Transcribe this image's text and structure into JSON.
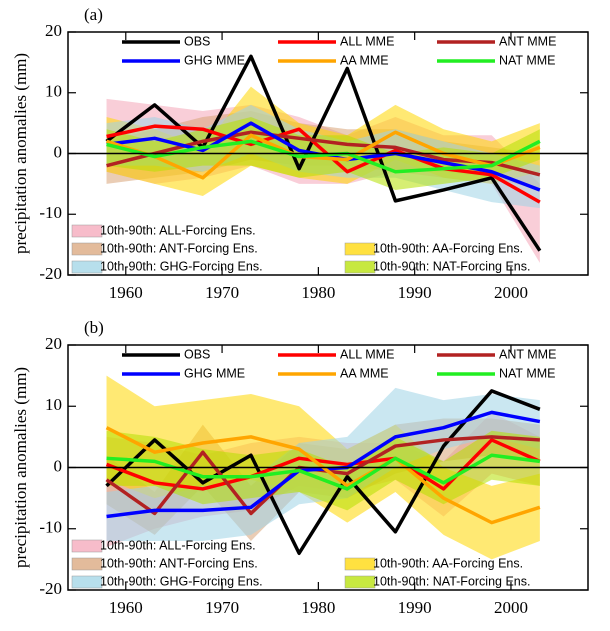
{
  "chart_data": [
    {
      "type": "line",
      "panel_label": "(a)",
      "y_label": "precipitation anomalies (mm)",
      "x": [
        1958,
        1963,
        1968,
        1973,
        1978,
        1983,
        1988,
        1993,
        1998,
        2003
      ],
      "xlim": [
        1954,
        2008
      ],
      "xticks": [
        1960,
        1970,
        1980,
        1990,
        2000
      ],
      "ylim": [
        -20,
        20
      ],
      "yticks": [
        -20,
        -10,
        0,
        10,
        20
      ],
      "zero_line": true,
      "series": [
        {
          "name": "OBS",
          "color": "#000000",
          "values": [
            2,
            8,
            1,
            16,
            -2.5,
            14,
            -7.8,
            -6,
            -4,
            -16
          ]
        },
        {
          "name": "ALL MME",
          "color": "#ff0000",
          "values": [
            2.8,
            4.5,
            4,
            1.5,
            4,
            -3,
            0.5,
            -2.5,
            -3.5,
            -8
          ]
        },
        {
          "name": "ANT MME",
          "color": "#b22222",
          "values": [
            -2,
            0,
            2,
            3.5,
            2.5,
            1.5,
            1,
            -1,
            -1.5,
            -3.5
          ]
        },
        {
          "name": "GHG MME",
          "color": "#0000ff",
          "values": [
            1.5,
            2.5,
            0.5,
            5,
            0.5,
            -1,
            0,
            -1.5,
            -3,
            -6
          ]
        },
        {
          "name": "AA MME",
          "color": "#ffa500",
          "values": [
            2,
            -0.5,
            -4,
            3,
            -0.5,
            -1,
            3.5,
            0,
            -2,
            1
          ]
        },
        {
          "name": "NAT MME",
          "color": "#22ee22",
          "values": [
            1.5,
            -0.5,
            1,
            2,
            -0.5,
            0,
            -3,
            -2.5,
            -2,
            2
          ]
        }
      ],
      "bands": [
        {
          "name": "10th-90th: ALL-Forcing Ens.",
          "color": "#f4a6b8",
          "lower": [
            -3,
            -5,
            -4,
            -2,
            -5,
            -5,
            -3,
            -4,
            -5,
            -18
          ],
          "upper": [
            9,
            8,
            7,
            8,
            6,
            3,
            6,
            3,
            3,
            -5
          ]
        },
        {
          "name": "10th-90th: ANT-Forcing Ens.",
          "color": "#d9a479",
          "lower": [
            -5,
            -4,
            -3,
            -1,
            -2,
            -2,
            -3,
            -3,
            -4,
            -6
          ],
          "upper": [
            2,
            4,
            6,
            7,
            5,
            4,
            4,
            2,
            1,
            0
          ]
        },
        {
          "name": "10th-90th: AA-Forcing Ens.",
          "color": "#ffd700",
          "lower": [
            -3,
            -5,
            -7,
            -2,
            -4,
            -5,
            -1,
            -4,
            -5,
            -3
          ],
          "upper": [
            6,
            4,
            1,
            11,
            5,
            3,
            8,
            4,
            2,
            5
          ]
        },
        {
          "name": "10th-90th: GHG-Forcing Ens.",
          "color": "#9fd4e6",
          "lower": [
            -2,
            -2,
            -3,
            0,
            -3,
            -4,
            -4,
            -6,
            -8,
            -9
          ],
          "upper": [
            5,
            6,
            4,
            8,
            4,
            2,
            4,
            2,
            0,
            -2
          ]
        },
        {
          "name": "10th-90th: NAT-Forcing Ens.",
          "color": "#b4e000",
          "lower": [
            -2,
            -3,
            -2,
            -2,
            -4,
            -3,
            -6,
            -5,
            -4,
            -1
          ],
          "upper": [
            4,
            2,
            4,
            6,
            3,
            3,
            0,
            1,
            0,
            4
          ]
        }
      ]
    },
    {
      "type": "line",
      "panel_label": "(b)",
      "y_label": "precipitation anomalies (mm)",
      "x": [
        1958,
        1963,
        1968,
        1973,
        1978,
        1983,
        1988,
        1993,
        1998,
        2003
      ],
      "xlim": [
        1954,
        2008
      ],
      "xticks": [
        1960,
        1970,
        1980,
        1990,
        2000
      ],
      "ylim": [
        -20,
        20
      ],
      "yticks": [
        -20,
        -10,
        0,
        10,
        20
      ],
      "zero_line": true,
      "series": [
        {
          "name": "OBS",
          "color": "#000000",
          "values": [
            -3,
            4.5,
            -2.5,
            2,
            -14,
            -1.5,
            -10.5,
            3.5,
            12.5,
            9.5
          ]
        },
        {
          "name": "ALL MME",
          "color": "#ff0000",
          "values": [
            0.5,
            -2.5,
            -3.5,
            -1.5,
            1.5,
            0.5,
            1.5,
            -3.5,
            4.5,
            1
          ]
        },
        {
          "name": "ANT MME",
          "color": "#b22222",
          "values": [
            -2,
            -7.5,
            2.5,
            -7.5,
            0,
            -1,
            3.5,
            4.5,
            5,
            4.5
          ]
        },
        {
          "name": "GHG MME",
          "color": "#0000ff",
          "values": [
            -8,
            -7,
            -7,
            -6.5,
            -0.5,
            0,
            5,
            6.5,
            9,
            7.5
          ]
        },
        {
          "name": "AA MME",
          "color": "#ffa500",
          "values": [
            6.5,
            2.5,
            4,
            5,
            3,
            -3,
            1.5,
            -5,
            -9,
            -6.5
          ]
        },
        {
          "name": "NAT MME",
          "color": "#22ee22",
          "values": [
            1.5,
            1,
            -1.5,
            -1.5,
            -0.5,
            -3.5,
            1.5,
            -2.5,
            2,
            1
          ]
        }
      ],
      "bands": [
        {
          "name": "10th-90th: ALL-Forcing Ens.",
          "color": "#f4a6b8",
          "lower": [
            -13,
            -10,
            -8,
            -7,
            -3,
            -4,
            -2,
            -8,
            -1,
            -3
          ],
          "upper": [
            5,
            4,
            2,
            4,
            5,
            4,
            4,
            1,
            9,
            5
          ]
        },
        {
          "name": "10th-90th: ANT-Forcing Ens.",
          "color": "#d9a479",
          "lower": [
            -6,
            -11,
            -3,
            -12,
            -4,
            -5,
            -1,
            1,
            2,
            1
          ],
          "upper": [
            2,
            -4,
            7,
            -3,
            4,
            3,
            7,
            8,
            8,
            7
          ]
        },
        {
          "name": "10th-90th: AA-Forcing Ens.",
          "color": "#ffd700",
          "lower": [
            -2,
            -5,
            -3,
            -2,
            -4,
            -9,
            -4,
            -11,
            -15,
            -12
          ],
          "upper": [
            15,
            10,
            11,
            12,
            10,
            3,
            7,
            0,
            -3,
            -1
          ]
        },
        {
          "name": "10th-90th: GHG-Forcing Ens.",
          "color": "#9fd4e6",
          "lower": [
            -12,
            -12,
            -12,
            -11,
            -6,
            -5,
            0,
            3,
            5,
            3
          ],
          "upper": [
            -4,
            -3,
            -3,
            -2,
            4,
            5,
            13,
            11,
            12,
            11
          ]
        },
        {
          "name": "10th-90th: NAT-Forcing Ens.",
          "color": "#b4e000",
          "lower": [
            -3,
            -3,
            -6,
            -5,
            -4,
            -7,
            -2,
            -6,
            -2,
            -3
          ],
          "upper": [
            6,
            5,
            3,
            2,
            3,
            0,
            5,
            1,
            6,
            5
          ]
        }
      ]
    }
  ]
}
